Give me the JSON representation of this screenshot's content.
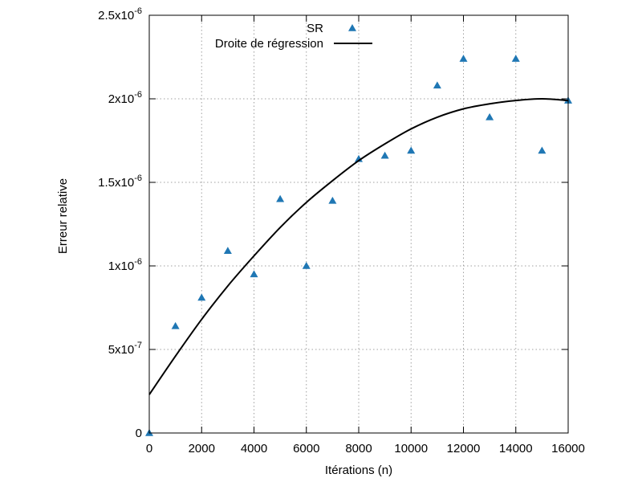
{
  "chart_data": {
    "type": "scatter",
    "title": "",
    "xlabel": "Itérations (n)",
    "ylabel": "Erreur relative",
    "xlim": [
      0,
      16000
    ],
    "ylim": [
      0,
      2.5e-06
    ],
    "grid": true,
    "legend_position": "top-center",
    "x_ticks": [
      {
        "value": 0,
        "label": "0"
      },
      {
        "value": 2000,
        "label": "2000"
      },
      {
        "value": 4000,
        "label": "4000"
      },
      {
        "value": 6000,
        "label": "6000"
      },
      {
        "value": 8000,
        "label": "8000"
      },
      {
        "value": 10000,
        "label": "10000"
      },
      {
        "value": 12000,
        "label": "12000"
      },
      {
        "value": 14000,
        "label": "14000"
      },
      {
        "value": 16000,
        "label": "16000"
      }
    ],
    "y_ticks": [
      {
        "value": 0,
        "mantissa": "0",
        "exponent": ""
      },
      {
        "value": 5e-07,
        "mantissa": "5x10",
        "exponent": "-7"
      },
      {
        "value": 1e-06,
        "mantissa": "1x10",
        "exponent": "-6"
      },
      {
        "value": 1.5e-06,
        "mantissa": "1.5x10",
        "exponent": "-6"
      },
      {
        "value": 2e-06,
        "mantissa": "2x10",
        "exponent": "-6"
      },
      {
        "value": 2.5e-06,
        "mantissa": "2.5x10",
        "exponent": "-6"
      }
    ],
    "series": [
      {
        "name": "SR",
        "kind": "scatter",
        "marker": "triangle",
        "color": "#1f77b4",
        "x": [
          0,
          1000,
          2000,
          3000,
          4000,
          5000,
          6000,
          7000,
          8000,
          9000,
          10000,
          11000,
          12000,
          13000,
          14000,
          15000,
          16000
        ],
        "y": [
          0,
          6.4e-07,
          8.1e-07,
          1.09e-06,
          9.5e-07,
          1.4e-06,
          1e-06,
          1.39e-06,
          1.64e-06,
          1.66e-06,
          1.69e-06,
          2.08e-06,
          2.24e-06,
          1.89e-06,
          2.24e-06,
          1.69e-06,
          1.99e-06
        ]
      },
      {
        "name": "Droite de régression",
        "kind": "line",
        "color": "#000000",
        "x": [
          0,
          1000,
          2000,
          3000,
          4000,
          5000,
          6000,
          7000,
          8000,
          9000,
          10000,
          11000,
          12000,
          13000,
          14000,
          15000,
          16000
        ],
        "y": [
          2.3e-07,
          4.6e-07,
          6.8e-07,
          8.8e-07,
          1.06e-06,
          1.23e-06,
          1.38e-06,
          1.51e-06,
          1.63e-06,
          1.73e-06,
          1.82e-06,
          1.89e-06,
          1.94e-06,
          1.97e-06,
          1.99e-06,
          2e-06,
          1.99e-06
        ]
      }
    ]
  }
}
